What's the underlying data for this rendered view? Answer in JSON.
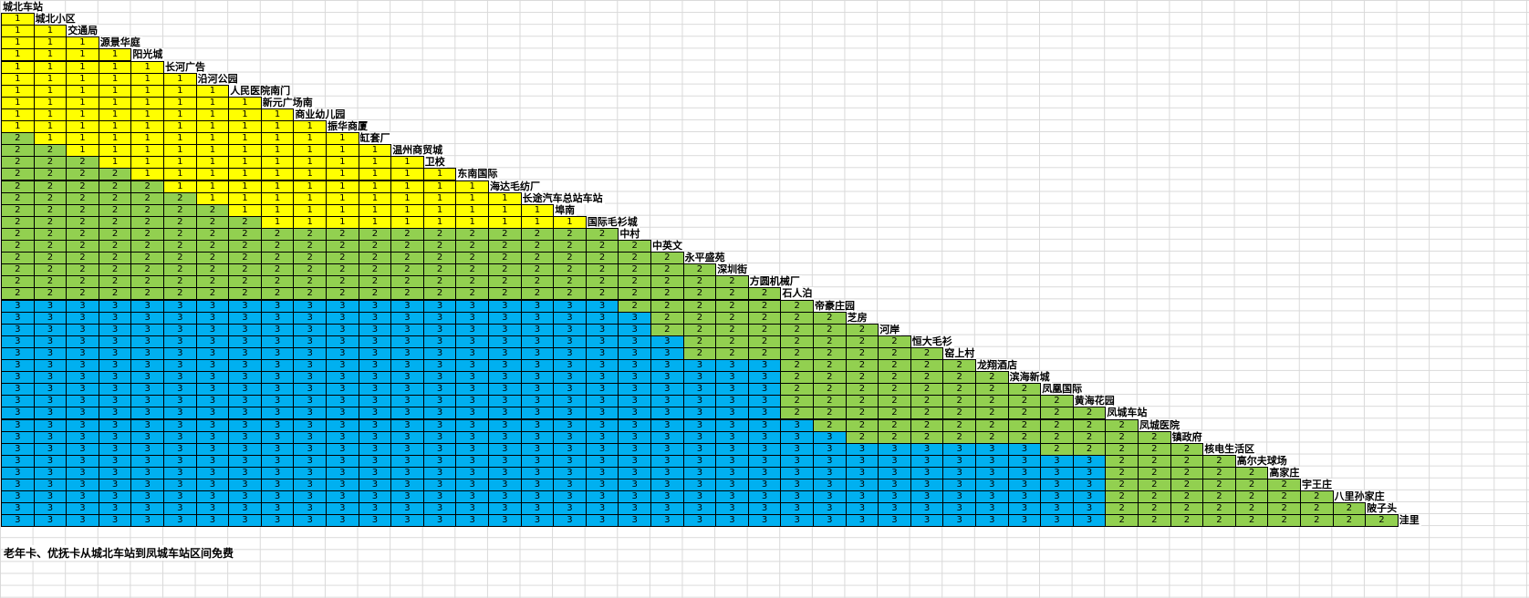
{
  "table": {
    "stations": [
      "城北车站",
      "城北小区",
      "交通局",
      "源景华庭",
      "阳光城",
      "长河广告",
      "沿河公园",
      "人民医院南门",
      "新元广场南",
      "商业幼儿园",
      "振华商厦",
      "缸套厂",
      "温州商贸城",
      "卫校",
      "东南国际",
      "海达毛纺厂",
      "长途汽车总站车站",
      "埠南",
      "国际毛衫城",
      "中村",
      "中英文",
      "永平盛苑",
      "深圳街",
      "方圆机械厂",
      "石人泊",
      "帝豪庄园",
      "芝房",
      "河岸",
      "恒大毛衫",
      "窑上村",
      "龙翔酒店",
      "滨海新城",
      "凤凰国际",
      "黄海花园",
      "凤城车站",
      "凤城医院",
      "镇政府",
      "核电生活区",
      "高尔夫球场",
      "高家庄",
      "宇王庄",
      "八里孙家庄",
      "陂子头",
      "洼里"
    ],
    "rows": [
      [
        1
      ],
      [
        1,
        1
      ],
      [
        1,
        1,
        1
      ],
      [
        1,
        1,
        1,
        1
      ],
      [
        1,
        1,
        1,
        1,
        1
      ],
      [
        1,
        1,
        1,
        1,
        1,
        1
      ],
      [
        1,
        1,
        1,
        1,
        1,
        1,
        1
      ],
      [
        1,
        1,
        1,
        1,
        1,
        1,
        1,
        1
      ],
      [
        1,
        1,
        1,
        1,
        1,
        1,
        1,
        1,
        1
      ],
      [
        1,
        1,
        1,
        1,
        1,
        1,
        1,
        1,
        1,
        1
      ],
      [
        2,
        1,
        1,
        1,
        1,
        1,
        1,
        1,
        1,
        1,
        1
      ],
      [
        2,
        2,
        1,
        1,
        1,
        1,
        1,
        1,
        1,
        1,
        1,
        1
      ],
      [
        2,
        2,
        2,
        1,
        1,
        1,
        1,
        1,
        1,
        1,
        1,
        1,
        1
      ],
      [
        2,
        2,
        2,
        2,
        1,
        1,
        1,
        1,
        1,
        1,
        1,
        1,
        1,
        1
      ],
      [
        2,
        2,
        2,
        2,
        2,
        1,
        1,
        1,
        1,
        1,
        1,
        1,
        1,
        1,
        1
      ],
      [
        2,
        2,
        2,
        2,
        2,
        2,
        1,
        1,
        1,
        1,
        1,
        1,
        1,
        1,
        1,
        1
      ],
      [
        2,
        2,
        2,
        2,
        2,
        2,
        2,
        1,
        1,
        1,
        1,
        1,
        1,
        1,
        1,
        1,
        1
      ],
      [
        2,
        2,
        2,
        2,
        2,
        2,
        2,
        2,
        1,
        1,
        1,
        1,
        1,
        1,
        1,
        1,
        1,
        1
      ],
      [
        2,
        2,
        2,
        2,
        2,
        2,
        2,
        2,
        2,
        2,
        2,
        2,
        2,
        2,
        2,
        2,
        2,
        2,
        2
      ],
      [
        2,
        2,
        2,
        2,
        2,
        2,
        2,
        2,
        2,
        2,
        2,
        2,
        2,
        2,
        2,
        2,
        2,
        2,
        2,
        2
      ],
      [
        2,
        2,
        2,
        2,
        2,
        2,
        2,
        2,
        2,
        2,
        2,
        2,
        2,
        2,
        2,
        2,
        2,
        2,
        2,
        2,
        2
      ],
      [
        2,
        2,
        2,
        2,
        2,
        2,
        2,
        2,
        2,
        2,
        2,
        2,
        2,
        2,
        2,
        2,
        2,
        2,
        2,
        2,
        2,
        2
      ],
      [
        2,
        2,
        2,
        2,
        2,
        2,
        2,
        2,
        2,
        2,
        2,
        2,
        2,
        2,
        2,
        2,
        2,
        2,
        2,
        2,
        2,
        2,
        2
      ],
      [
        2,
        2,
        2,
        2,
        2,
        2,
        2,
        2,
        2,
        2,
        2,
        2,
        2,
        2,
        2,
        2,
        2,
        2,
        2,
        2,
        2,
        2,
        2,
        2
      ],
      [
        3,
        3,
        3,
        3,
        3,
        3,
        3,
        3,
        3,
        3,
        3,
        3,
        3,
        3,
        3,
        3,
        3,
        3,
        3,
        2,
        2,
        2,
        2,
        2,
        2
      ],
      [
        3,
        3,
        3,
        3,
        3,
        3,
        3,
        3,
        3,
        3,
        3,
        3,
        3,
        3,
        3,
        3,
        3,
        3,
        3,
        3,
        2,
        2,
        2,
        2,
        2,
        2
      ],
      [
        3,
        3,
        3,
        3,
        3,
        3,
        3,
        3,
        3,
        3,
        3,
        3,
        3,
        3,
        3,
        3,
        3,
        3,
        3,
        3,
        2,
        2,
        2,
        2,
        2,
        2,
        2
      ],
      [
        3,
        3,
        3,
        3,
        3,
        3,
        3,
        3,
        3,
        3,
        3,
        3,
        3,
        3,
        3,
        3,
        3,
        3,
        3,
        3,
        3,
        2,
        2,
        2,
        2,
        2,
        2,
        2
      ],
      [
        3,
        3,
        3,
        3,
        3,
        3,
        3,
        3,
        3,
        3,
        3,
        3,
        3,
        3,
        3,
        3,
        3,
        3,
        3,
        3,
        3,
        2,
        2,
        2,
        2,
        2,
        2,
        2,
        2
      ],
      [
        3,
        3,
        3,
        3,
        3,
        3,
        3,
        3,
        3,
        3,
        3,
        3,
        3,
        3,
        3,
        3,
        3,
        3,
        3,
        3,
        3,
        3,
        3,
        3,
        2,
        2,
        2,
        2,
        2,
        2
      ],
      [
        3,
        3,
        3,
        3,
        3,
        3,
        3,
        3,
        3,
        3,
        3,
        3,
        3,
        3,
        3,
        3,
        3,
        3,
        3,
        3,
        3,
        3,
        3,
        3,
        2,
        2,
        2,
        2,
        2,
        2,
        2
      ],
      [
        3,
        3,
        3,
        3,
        3,
        3,
        3,
        3,
        3,
        3,
        3,
        3,
        3,
        3,
        3,
        3,
        3,
        3,
        3,
        3,
        3,
        3,
        3,
        3,
        2,
        2,
        2,
        2,
        2,
        2,
        2,
        2
      ],
      [
        3,
        3,
        3,
        3,
        3,
        3,
        3,
        3,
        3,
        3,
        3,
        3,
        3,
        3,
        3,
        3,
        3,
        3,
        3,
        3,
        3,
        3,
        3,
        3,
        2,
        2,
        2,
        2,
        2,
        2,
        2,
        2,
        2
      ],
      [
        3,
        3,
        3,
        3,
        3,
        3,
        3,
        3,
        3,
        3,
        3,
        3,
        3,
        3,
        3,
        3,
        3,
        3,
        3,
        3,
        3,
        3,
        3,
        3,
        2,
        2,
        2,
        2,
        2,
        2,
        2,
        2,
        2,
        2
      ],
      [
        3,
        3,
        3,
        3,
        3,
        3,
        3,
        3,
        3,
        3,
        3,
        3,
        3,
        3,
        3,
        3,
        3,
        3,
        3,
        3,
        3,
        3,
        3,
        3,
        3,
        2,
        2,
        2,
        2,
        2,
        2,
        2,
        2,
        2,
        2
      ],
      [
        3,
        3,
        3,
        3,
        3,
        3,
        3,
        3,
        3,
        3,
        3,
        3,
        3,
        3,
        3,
        3,
        3,
        3,
        3,
        3,
        3,
        3,
        3,
        3,
        3,
        3,
        2,
        2,
        2,
        2,
        2,
        2,
        2,
        2,
        2,
        2
      ],
      [
        3,
        3,
        3,
        3,
        3,
        3,
        3,
        3,
        3,
        3,
        3,
        3,
        3,
        3,
        3,
        3,
        3,
        3,
        3,
        3,
        3,
        3,
        3,
        3,
        3,
        3,
        3,
        3,
        3,
        3,
        3,
        3,
        2,
        2,
        2,
        2,
        2
      ],
      [
        3,
        3,
        3,
        3,
        3,
        3,
        3,
        3,
        3,
        3,
        3,
        3,
        3,
        3,
        3,
        3,
        3,
        3,
        3,
        3,
        3,
        3,
        3,
        3,
        3,
        3,
        3,
        3,
        3,
        3,
        3,
        3,
        3,
        3,
        2,
        2,
        2,
        2
      ],
      [
        3,
        3,
        3,
        3,
        3,
        3,
        3,
        3,
        3,
        3,
        3,
        3,
        3,
        3,
        3,
        3,
        3,
        3,
        3,
        3,
        3,
        3,
        3,
        3,
        3,
        3,
        3,
        3,
        3,
        3,
        3,
        3,
        3,
        3,
        2,
        2,
        2,
        2,
        2
      ],
      [
        3,
        3,
        3,
        3,
        3,
        3,
        3,
        3,
        3,
        3,
        3,
        3,
        3,
        3,
        3,
        3,
        3,
        3,
        3,
        3,
        3,
        3,
        3,
        3,
        3,
        3,
        3,
        3,
        3,
        3,
        3,
        3,
        3,
        3,
        2,
        2,
        2,
        2,
        2,
        2
      ],
      [
        3,
        3,
        3,
        3,
        3,
        3,
        3,
        3,
        3,
        3,
        3,
        3,
        3,
        3,
        3,
        3,
        3,
        3,
        3,
        3,
        3,
        3,
        3,
        3,
        3,
        3,
        3,
        3,
        3,
        3,
        3,
        3,
        3,
        3,
        2,
        2,
        2,
        2,
        2,
        2,
        2
      ],
      [
        3,
        3,
        3,
        3,
        3,
        3,
        3,
        3,
        3,
        3,
        3,
        3,
        3,
        3,
        3,
        3,
        3,
        3,
        3,
        3,
        3,
        3,
        3,
        3,
        3,
        3,
        3,
        3,
        3,
        3,
        3,
        3,
        3,
        3,
        2,
        2,
        2,
        2,
        2,
        2,
        2,
        2
      ],
      [
        3,
        3,
        3,
        3,
        3,
        3,
        3,
        3,
        3,
        3,
        3,
        3,
        3,
        3,
        3,
        3,
        3,
        3,
        3,
        3,
        3,
        3,
        3,
        3,
        3,
        3,
        3,
        3,
        3,
        3,
        3,
        3,
        3,
        3,
        2,
        2,
        2,
        2,
        2,
        2,
        2,
        2,
        2
      ]
    ],
    "colors": {
      "1": "#ffff00",
      "2": "#92d050",
      "3": "#00b0f0"
    }
  },
  "note": "老年卡、优抚卡从城北车站到凤城车站区间免费"
}
